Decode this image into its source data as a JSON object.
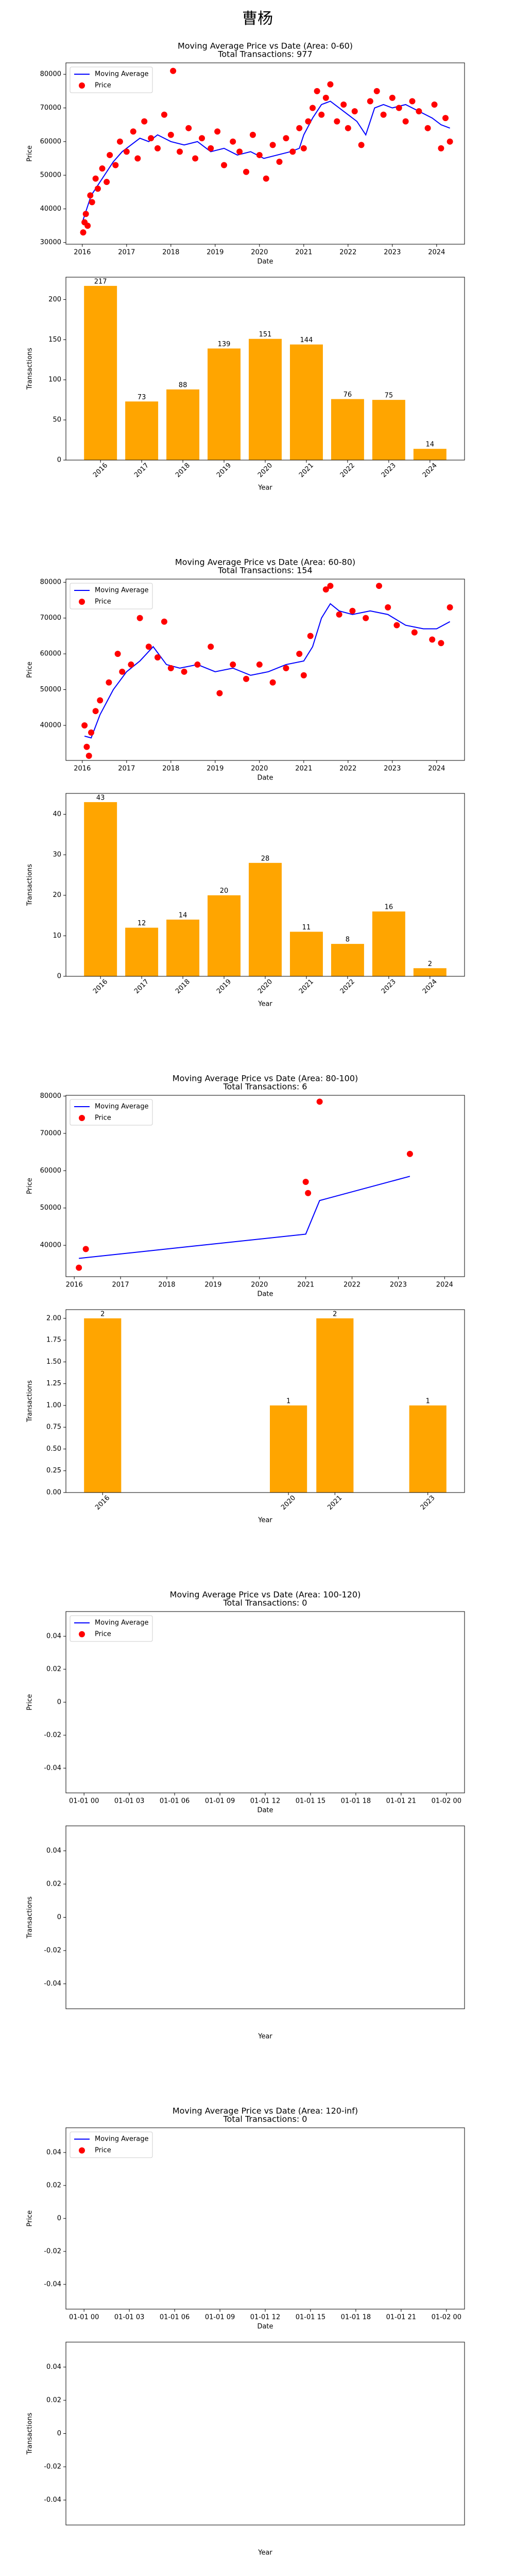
{
  "title": "曹杨",
  "chart_data": [
    {
      "type": "scatter",
      "title": "Moving Average Price vs Date (Area: 0-60)",
      "subtitle": "Total Transactions: 977",
      "xlabel": "Date",
      "ylabel": "Price",
      "legend": "upper left",
      "xlim": [
        2015.63,
        2024.63
      ],
      "xticks": [
        2016,
        2017,
        2018,
        2019,
        2020,
        2021,
        2022,
        2023,
        2024
      ],
      "ylim": [
        29500,
        83400
      ],
      "yticks": [
        30000,
        40000,
        50000,
        60000,
        70000,
        80000
      ],
      "series": [
        {
          "name": "Moving Average",
          "color": "#0000ff",
          "style": "line",
          "x": [
            2016.0,
            2016.1,
            2016.2,
            2016.35,
            2016.5,
            2016.7,
            2016.9,
            2017.1,
            2017.3,
            2017.5,
            2017.7,
            2018.0,
            2018.3,
            2018.6,
            2018.9,
            2019.2,
            2019.5,
            2019.8,
            2020.1,
            2020.4,
            2020.7,
            2020.9,
            2021.0,
            2021.2,
            2021.4,
            2021.6,
            2021.8,
            2022.0,
            2022.2,
            2022.4,
            2022.6,
            2022.8,
            2023.0,
            2023.3,
            2023.6,
            2023.9,
            2024.1,
            2024.3
          ],
          "values": [
            36000,
            40000,
            44000,
            47000,
            50000,
            54000,
            57000,
            59000,
            61000,
            60000,
            62000,
            60000,
            59000,
            60000,
            57000,
            58000,
            56000,
            57000,
            55000,
            56000,
            57000,
            58000,
            62000,
            67000,
            71000,
            72000,
            70000,
            68000,
            66000,
            62000,
            70000,
            71000,
            70000,
            71000,
            69000,
            67000,
            65000,
            64000
          ]
        },
        {
          "name": "Price",
          "color": "#ff0000",
          "style": "points",
          "x": [
            2016.02,
            2016.05,
            2016.08,
            2016.12,
            2016.18,
            2016.22,
            2016.3,
            2016.35,
            2016.45,
            2016.55,
            2016.62,
            2016.75,
            2016.85,
            2017.0,
            2017.15,
            2017.25,
            2017.4,
            2017.55,
            2017.7,
            2017.85,
            2018.0,
            2018.05,
            2018.2,
            2018.4,
            2018.55,
            2018.7,
            2018.9,
            2019.05,
            2019.2,
            2019.4,
            2019.55,
            2019.7,
            2019.85,
            2020.0,
            2020.15,
            2020.3,
            2020.45,
            2020.6,
            2020.75,
            2020.9,
            2021.0,
            2021.1,
            2021.2,
            2021.3,
            2021.4,
            2021.5,
            2021.6,
            2021.75,
            2021.9,
            2022.0,
            2022.15,
            2022.3,
            2022.5,
            2022.65,
            2022.8,
            2023.0,
            2023.15,
            2023.3,
            2023.45,
            2023.6,
            2023.8,
            2023.95,
            2024.1,
            2024.2,
            2024.3
          ],
          "values": [
            33000,
            36000,
            38500,
            35000,
            44000,
            42000,
            49000,
            46000,
            52000,
            48000,
            56000,
            53000,
            60000,
            57000,
            63000,
            55000,
            66000,
            61000,
            58000,
            68000,
            62000,
            81000,
            57000,
            64000,
            55000,
            61000,
            58000,
            63000,
            53000,
            60000,
            57000,
            51000,
            62000,
            56000,
            49000,
            59000,
            54000,
            61000,
            57000,
            64000,
            58000,
            66000,
            70000,
            75000,
            68000,
            73000,
            77000,
            66000,
            71000,
            64000,
            69000,
            59000,
            72000,
            75000,
            68000,
            73000,
            70000,
            66000,
            72000,
            69000,
            64000,
            71000,
            58000,
            67000,
            60000
          ]
        }
      ]
    },
    {
      "type": "bar",
      "xlabel": "Year",
      "ylabel": "Transactions",
      "color": "#ffa500",
      "x": [
        2016,
        2017,
        2018,
        2019,
        2020,
        2021,
        2022,
        2023,
        2024
      ],
      "values": [
        217,
        73,
        88,
        139,
        151,
        144,
        76,
        75,
        14
      ],
      "xlim": [
        2015.16,
        2024.84
      ],
      "xticks": [
        2016,
        2017,
        2018,
        2019,
        2020,
        2021,
        2022,
        2023,
        2024
      ],
      "ylim": [
        0,
        227.85
      ],
      "yticks": [
        0,
        50,
        100,
        150,
        200
      ]
    },
    {
      "type": "scatter",
      "title": "Moving Average Price vs Date (Area: 60-80)",
      "subtitle": "Total Transactions: 154",
      "xlabel": "Date",
      "ylabel": "Price",
      "legend": "upper left",
      "xlim": [
        2015.63,
        2024.63
      ],
      "xticks": [
        2016,
        2017,
        2018,
        2019,
        2020,
        2021,
        2022,
        2023,
        2024
      ],
      "ylim": [
        30200,
        80900
      ],
      "yticks": [
        40000,
        50000,
        60000,
        70000,
        80000
      ],
      "series": [
        {
          "name": "Moving Average",
          "color": "#0000ff",
          "style": "line",
          "x": [
            2016.05,
            2016.2,
            2016.4,
            2016.7,
            2017.0,
            2017.3,
            2017.6,
            2017.9,
            2018.2,
            2018.6,
            2019.0,
            2019.4,
            2019.8,
            2020.2,
            2020.6,
            2021.0,
            2021.2,
            2021.4,
            2021.6,
            2021.8,
            2022.1,
            2022.5,
            2022.9,
            2023.3,
            2023.7,
            2024.0,
            2024.3
          ],
          "values": [
            37000,
            36500,
            43000,
            50000,
            55000,
            58000,
            62000,
            57000,
            56000,
            57000,
            55000,
            56000,
            54000,
            55000,
            57000,
            58000,
            62000,
            70000,
            74000,
            72000,
            71000,
            72000,
            71000,
            68000,
            67000,
            67000,
            69000
          ]
        },
        {
          "name": "Price",
          "color": "#ff0000",
          "style": "points",
          "x": [
            2016.05,
            2016.1,
            2016.15,
            2016.2,
            2016.3,
            2016.4,
            2016.6,
            2016.8,
            2016.9,
            2017.1,
            2017.3,
            2017.5,
            2017.7,
            2017.85,
            2018.0,
            2018.3,
            2018.6,
            2018.9,
            2019.1,
            2019.4,
            2019.7,
            2020.0,
            2020.3,
            2020.6,
            2020.9,
            2021.0,
            2021.15,
            2021.5,
            2021.6,
            2021.8,
            2022.1,
            2022.4,
            2022.7,
            2022.9,
            2023.1,
            2023.5,
            2023.9,
            2024.1,
            2024.3
          ],
          "values": [
            40000,
            34000,
            31500,
            38000,
            44000,
            47000,
            52000,
            60000,
            55000,
            57000,
            70000,
            62000,
            59000,
            69000,
            56000,
            55000,
            57000,
            62000,
            49000,
            57000,
            53000,
            57000,
            52000,
            56000,
            60000,
            54000,
            65000,
            78000,
            79000,
            71000,
            72000,
            70000,
            79000,
            73000,
            68000,
            66000,
            64000,
            63000,
            73000
          ]
        }
      ]
    },
    {
      "type": "bar",
      "xlabel": "Year",
      "ylabel": "Transactions",
      "color": "#ffa500",
      "x": [
        2016,
        2017,
        2018,
        2019,
        2020,
        2021,
        2022,
        2023,
        2024
      ],
      "values": [
        43,
        12,
        14,
        20,
        28,
        11,
        8,
        16,
        2
      ],
      "xlim": [
        2015.16,
        2024.84
      ],
      "xticks": [
        2016,
        2017,
        2018,
        2019,
        2020,
        2021,
        2022,
        2023,
        2024
      ],
      "ylim": [
        0,
        45.15
      ],
      "yticks": [
        0,
        10,
        20,
        30,
        40
      ]
    },
    {
      "type": "scatter",
      "title": "Moving Average Price vs Date (Area: 80-100)",
      "subtitle": "Total Transactions: 6",
      "xlabel": "Date",
      "ylabel": "Price",
      "legend": "upper left",
      "xlim": [
        2015.82,
        2024.43
      ],
      "xticks": [
        2016,
        2017,
        2018,
        2019,
        2020,
        2021,
        2022,
        2023,
        2024
      ],
      "ylim": [
        31600,
        80200
      ],
      "yticks": [
        40000,
        50000,
        60000,
        70000,
        80000
      ],
      "series": [
        {
          "name": "Moving Average",
          "color": "#0000ff",
          "style": "line",
          "x": [
            2016.1,
            2021.0,
            2021.3,
            2023.25
          ],
          "values": [
            36500,
            43000,
            52000,
            58500
          ]
        },
        {
          "name": "Price",
          "color": "#ff0000",
          "style": "points",
          "x": [
            2016.1,
            2016.25,
            2021.0,
            2021.05,
            2021.3,
            2023.25
          ],
          "values": [
            34000,
            39000,
            57000,
            54000,
            78500,
            64500
          ]
        }
      ]
    },
    {
      "type": "bar",
      "xlabel": "Year",
      "ylabel": "Transactions",
      "color": "#ffa500",
      "x": [
        2016,
        2020,
        2021,
        2023
      ],
      "values": [
        2,
        1,
        2,
        1
      ],
      "xlim": [
        2015.21,
        2023.79
      ],
      "xticks": [
        2016,
        2020,
        2021,
        2023
      ],
      "ylim": [
        0,
        2.1
      ],
      "yticks": [
        {
          "value": 0,
          "label": "0.00"
        },
        {
          "value": 0.25,
          "label": "0.25"
        },
        {
          "value": 0.5,
          "label": "0.50"
        },
        {
          "value": 0.75,
          "label": "0.75"
        },
        {
          "value": 1,
          "label": "1.00"
        },
        {
          "value": 1.25,
          "label": "1.25"
        },
        {
          "value": 1.5,
          "label": "1.50"
        },
        {
          "value": 1.75,
          "label": "1.75"
        },
        {
          "value": 2,
          "label": "2.00"
        }
      ]
    },
    {
      "type": "scatter",
      "title": "Moving Average Price vs Date (Area: 100-120)",
      "subtitle": "Total Transactions: 0",
      "xlabel": "Date",
      "ylabel": "Price",
      "legend": "upper left",
      "xlim": [
        -1.2,
        25.2
      ],
      "xticks": [
        {
          "value": 0,
          "label": "01-01 00"
        },
        {
          "value": 3,
          "label": "01-01 03"
        },
        {
          "value": 6,
          "label": "01-01 06"
        },
        {
          "value": 9,
          "label": "01-01 09"
        },
        {
          "value": 12,
          "label": "01-01 12"
        },
        {
          "value": 15,
          "label": "01-01 15"
        },
        {
          "value": 18,
          "label": "01-01 18"
        },
        {
          "value": 21,
          "label": "01-01 21"
        },
        {
          "value": 24,
          "label": "01-02 00"
        }
      ],
      "ylim": [
        -0.055,
        0.055
      ],
      "yticks": [
        -0.04,
        -0.02,
        0.0,
        0.02,
        0.04
      ],
      "series": [
        {
          "name": "Moving Average",
          "color": "#0000ff",
          "style": "line",
          "x": [],
          "values": []
        },
        {
          "name": "Price",
          "color": "#ff0000",
          "style": "points",
          "x": [],
          "values": []
        }
      ]
    },
    {
      "type": "bar",
      "xlabel": "Year",
      "ylabel": "Transactions",
      "color": "#ffa500",
      "x": [],
      "values": [],
      "xlim": [
        0,
        1
      ],
      "xticks": [],
      "ylim": [
        -0.055,
        0.055
      ],
      "yticks": [
        -0.04,
        -0.02,
        0.0,
        0.02,
        0.04
      ]
    },
    {
      "type": "scatter",
      "title": "Moving Average Price vs Date (Area: 120-inf)",
      "subtitle": "Total Transactions: 0",
      "xlabel": "Date",
      "ylabel": "Price",
      "legend": "upper left",
      "xlim": [
        -1.2,
        25.2
      ],
      "xticks": [
        {
          "value": 0,
          "label": "01-01 00"
        },
        {
          "value": 3,
          "label": "01-01 03"
        },
        {
          "value": 6,
          "label": "01-01 06"
        },
        {
          "value": 9,
          "label": "01-01 09"
        },
        {
          "value": 12,
          "label": "01-01 12"
        },
        {
          "value": 15,
          "label": "01-01 15"
        },
        {
          "value": 18,
          "label": "01-01 18"
        },
        {
          "value": 21,
          "label": "01-01 21"
        },
        {
          "value": 24,
          "label": "01-02 00"
        }
      ],
      "ylim": [
        -0.055,
        0.055
      ],
      "yticks": [
        -0.04,
        -0.02,
        0.0,
        0.02,
        0.04
      ],
      "series": [
        {
          "name": "Moving Average",
          "color": "#0000ff",
          "style": "line",
          "x": [],
          "values": []
        },
        {
          "name": "Price",
          "color": "#ff0000",
          "style": "points",
          "x": [],
          "values": []
        }
      ]
    },
    {
      "type": "bar",
      "xlabel": "Year",
      "ylabel": "Transactions",
      "color": "#ffa500",
      "x": [],
      "values": [],
      "xlim": [
        0,
        1
      ],
      "xticks": [],
      "ylim": [
        -0.055,
        0.055
      ],
      "yticks": [
        -0.04,
        -0.02,
        0.0,
        0.02,
        0.04
      ]
    }
  ]
}
